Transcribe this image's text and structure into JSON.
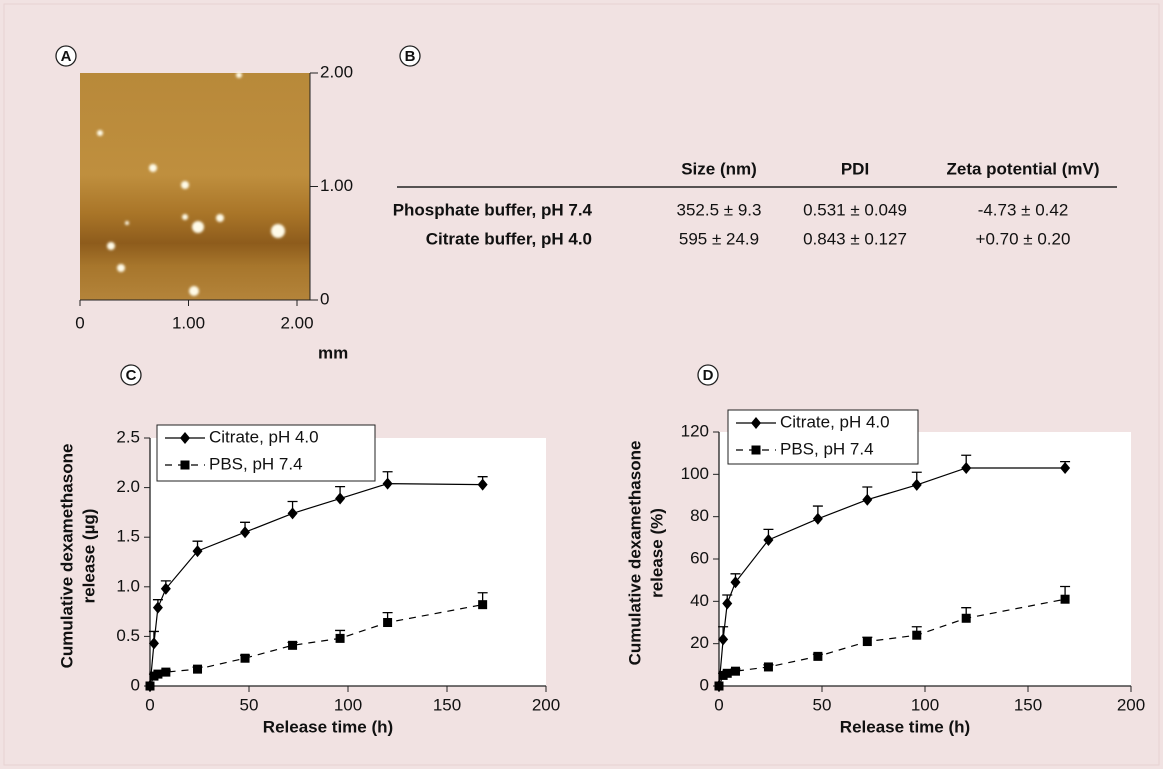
{
  "panels": [
    "A",
    "B",
    "C",
    "D"
  ],
  "afm": {
    "xticks": [
      0,
      {
        "value": 1,
        "label": "1.00"
      },
      {
        "value": 2,
        "label": "2.00"
      }
    ],
    "yticks": [
      0,
      {
        "value": 1,
        "label": "1.00"
      },
      {
        "value": 2,
        "label": "2.00"
      }
    ],
    "unit": "mm"
  },
  "table": {
    "columns": [
      "Size (nm)",
      "PDI",
      "Zeta potential (mV)"
    ],
    "rows": [
      [
        "Phosphate buffer, pH 7.4",
        "352.5 ± 9.3",
        "0.531 ± 0.049",
        "-4.73 ± 0.42"
      ],
      [
        "Citrate buffer, pH 4.0",
        "595 ± 24.9",
        "0.843 ± 0.127",
        "+0.70 ± 0.20"
      ]
    ]
  },
  "chart_data": [
    {
      "type": "line",
      "ylabel": [
        "Cumulative dexamethasone",
        "release (µg)"
      ],
      "xlabel": "Release time (h)",
      "x": [
        0,
        2,
        4,
        8,
        24,
        48,
        72,
        96,
        120,
        168
      ],
      "xlim": [
        0,
        200
      ],
      "xticks": [
        0,
        50,
        100,
        150,
        200
      ],
      "ylim": [
        0,
        2.5
      ],
      "yticks": [
        0,
        0.5,
        {
          "value": 1,
          "label": "1.0"
        },
        1.5,
        {
          "value": 2,
          "label": "2.0"
        },
        2.5
      ],
      "grid": false,
      "legend": "upper left",
      "series": [
        {
          "name": "Citrate, pH 4.0",
          "color": "#000000",
          "line_style": "solid",
          "marker": "diamond",
          "values": [
            0,
            0.43,
            0.79,
            0.98,
            1.36,
            1.55,
            1.74,
            1.89,
            2.04,
            2.03
          ],
          "errors": [
            null,
            0.12,
            0.08,
            0.08,
            0.1,
            0.1,
            0.12,
            0.12,
            0.12,
            0.08
          ]
        },
        {
          "name": "PBS, pH 7.4",
          "color": "#000000",
          "line_style": "dashed",
          "marker": "square",
          "values": [
            0,
            0.1,
            0.12,
            0.14,
            0.17,
            0.28,
            0.41,
            0.48,
            0.64,
            0.82
          ],
          "errors": [
            null,
            0.02,
            0.02,
            0.02,
            0.02,
            0.03,
            0.03,
            0.08,
            0.1,
            0.12
          ]
        }
      ]
    },
    {
      "type": "line",
      "ylabel": [
        "Cumulative dexamethasone",
        "release (%)"
      ],
      "xlabel": "Release time (h)",
      "x": [
        0,
        2,
        4,
        8,
        24,
        48,
        72,
        96,
        120,
        168
      ],
      "xlim": [
        0,
        200
      ],
      "xticks": [
        0,
        50,
        100,
        150,
        200
      ],
      "ylim": [
        0,
        120
      ],
      "yticks": [
        0,
        20,
        40,
        60,
        80,
        100,
        120
      ],
      "grid": false,
      "legend": "upper left",
      "series": [
        {
          "name": "Citrate, pH 4.0",
          "color": "#000000",
          "line_style": "solid",
          "marker": "diamond",
          "values": [
            0,
            22,
            39,
            49,
            69,
            79,
            88,
            95,
            103,
            103
          ],
          "errors": [
            null,
            6,
            4,
            4,
            5,
            6,
            6,
            6,
            6,
            3
          ]
        },
        {
          "name": "PBS, pH 7.4",
          "color": "#000000",
          "line_style": "dashed",
          "marker": "square",
          "values": [
            0,
            5,
            6,
            7,
            9,
            14,
            21,
            24,
            32,
            41
          ],
          "errors": [
            null,
            1,
            1,
            1,
            1,
            1,
            2,
            4,
            5,
            6
          ]
        }
      ]
    }
  ]
}
